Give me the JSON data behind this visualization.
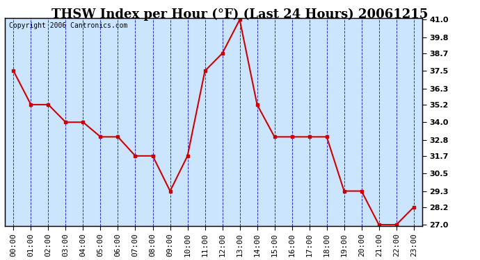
{
  "title": "THSW Index per Hour (°F) (Last 24 Hours) 20061215",
  "copyright": "Copyright 2006 Cantronics.com",
  "hours": [
    "00:00",
    "01:00",
    "02:00",
    "03:00",
    "04:00",
    "05:00",
    "06:00",
    "07:00",
    "08:00",
    "09:00",
    "10:00",
    "11:00",
    "12:00",
    "13:00",
    "14:00",
    "15:00",
    "16:00",
    "17:00",
    "18:00",
    "19:00",
    "20:00",
    "21:00",
    "22:00",
    "23:00"
  ],
  "values": [
    37.5,
    35.2,
    35.2,
    34.0,
    34.0,
    33.0,
    33.0,
    31.7,
    31.7,
    29.3,
    31.7,
    37.5,
    38.7,
    41.0,
    35.2,
    33.0,
    33.0,
    33.0,
    33.0,
    29.3,
    29.3,
    27.0,
    27.0,
    28.2
  ],
  "ylim_min": 27.0,
  "ylim_max": 41.0,
  "yticks": [
    27.0,
    28.2,
    29.3,
    30.5,
    31.7,
    32.8,
    34.0,
    35.2,
    36.3,
    37.5,
    38.7,
    39.8,
    41.0
  ],
  "line_color": "#cc0000",
  "marker_color": "#cc0000",
  "bg_color": "#cce5ff",
  "plot_bg": "#cce5ff",
  "title_fontsize": 13,
  "copyright_fontsize": 7,
  "tick_fontsize": 8,
  "grid_color": "#0000cc",
  "axis_color": "#000000"
}
